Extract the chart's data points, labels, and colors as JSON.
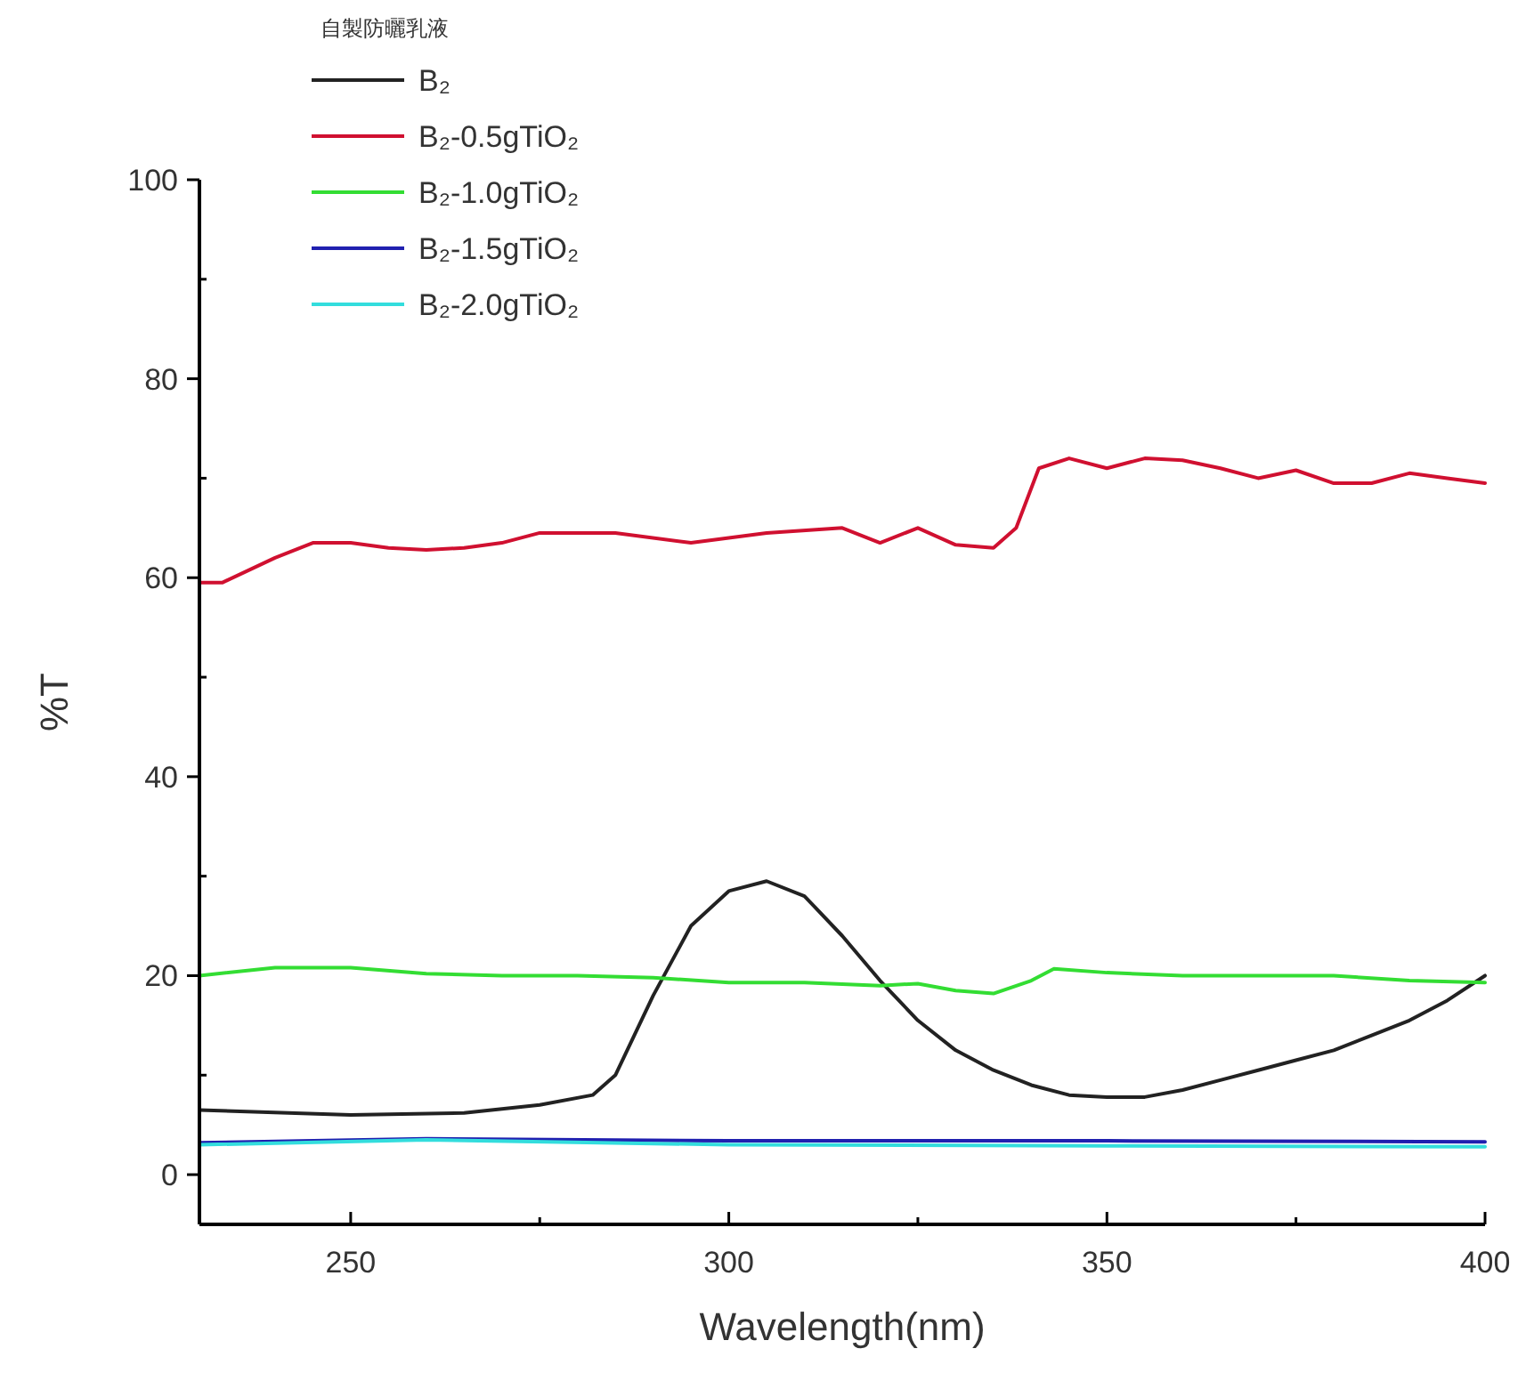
{
  "chart_data": {
    "type": "line",
    "xlabel": "Wavelength(nm)",
    "ylabel": "%T",
    "legend_title": "自製防曬乳液",
    "legend": "top left",
    "grid": false,
    "marker": "none",
    "line_style": "solid",
    "xlim": [
      230,
      400
    ],
    "ylim": [
      -5,
      100
    ],
    "xticks": [
      250,
      {
        "value": 275,
        "label": null
      },
      300,
      {
        "value": 325,
        "label": null
      },
      350,
      {
        "value": 375,
        "label": null
      },
      400
    ],
    "yticks": [
      0,
      {
        "value": 10,
        "label": null
      },
      20,
      {
        "value": 30,
        "label": null
      },
      40,
      {
        "value": 50,
        "label": null
      },
      60,
      {
        "value": 70,
        "label": null
      },
      80,
      {
        "value": 90,
        "label": null
      },
      100
    ],
    "series": [
      {
        "name": "B₂",
        "color": "#222222",
        "x": [
          230,
          250,
          265,
          275,
          282,
          285,
          290,
          295,
          300,
          305,
          310,
          315,
          320,
          325,
          330,
          335,
          340,
          345,
          350,
          355,
          360,
          365,
          370,
          375,
          380,
          385,
          390,
          395,
          400
        ],
        "values": [
          6.5,
          6,
          6.2,
          7,
          8,
          10,
          18,
          25,
          28.5,
          29.5,
          28,
          24,
          19.5,
          15.5,
          12.5,
          10.5,
          9,
          8,
          7.8,
          7.8,
          8.5,
          9.5,
          10.5,
          11.5,
          12.5,
          14,
          15.5,
          17.5,
          20
        ]
      },
      {
        "name": "B₂-0.5gTiO₂",
        "color": "#d01030",
        "x": [
          230,
          233,
          240,
          245,
          250,
          255,
          260,
          265,
          270,
          275,
          285,
          295,
          300,
          305,
          315,
          320,
          325,
          330,
          335,
          338,
          341,
          345,
          350,
          355,
          360,
          365,
          370,
          375,
          380,
          385,
          390,
          395,
          400
        ],
        "values": [
          59.5,
          59.5,
          62,
          63.5,
          63.5,
          63,
          62.8,
          63,
          63.5,
          64.5,
          64.5,
          63.5,
          64,
          64.5,
          65,
          63.5,
          65,
          63.3,
          63,
          65,
          71,
          72,
          71,
          72,
          71.8,
          71,
          70,
          70.8,
          69.5,
          69.5,
          70.5,
          70,
          69.5
        ]
      },
      {
        "name": "B₂-1.0gTiO₂",
        "color": "#33dd33",
        "x": [
          230,
          240,
          250,
          260,
          270,
          280,
          290,
          300,
          310,
          320,
          325,
          330,
          335,
          340,
          343,
          350,
          360,
          370,
          380,
          390,
          400
        ],
        "values": [
          20,
          20.8,
          20.8,
          20.2,
          20,
          20,
          19.8,
          19.3,
          19.3,
          19,
          19.2,
          18.5,
          18.2,
          19.5,
          20.7,
          20.3,
          20,
          20,
          20,
          19.5,
          19.3
        ]
      },
      {
        "name": "B₂-1.5gTiO₂",
        "color": "#2020b0",
        "x": [
          230,
          260,
          300,
          350,
          400
        ],
        "values": [
          3.2,
          3.6,
          3.4,
          3.4,
          3.3
        ]
      },
      {
        "name": "B₂-2.0gTiO₂",
        "color": "#33dddd",
        "x": [
          230,
          260,
          300,
          350,
          400
        ],
        "values": [
          3,
          3.5,
          3,
          2.9,
          2.8
        ]
      }
    ]
  }
}
